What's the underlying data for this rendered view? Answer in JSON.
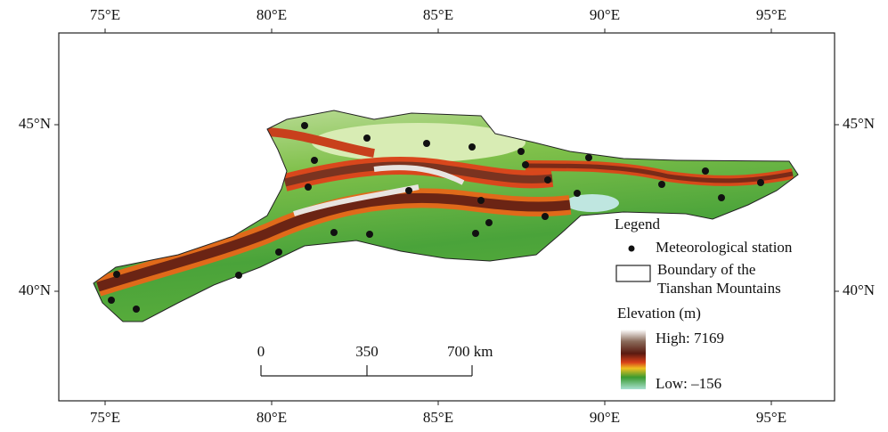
{
  "map": {
    "lon_ticks": [
      "75°E",
      "80°E",
      "85°E",
      "90°E",
      "95°E"
    ],
    "lat_ticks": [
      "45°N",
      "40°N"
    ],
    "scale_bar": [
      "0",
      "350",
      "700 km"
    ],
    "legend": {
      "title": "Legend",
      "station": "Meteorological station",
      "boundary": [
        "Boundary of the",
        "Tianshan Mountains"
      ],
      "elevation_title": "Elevation (m)",
      "high": "High: 7169",
      "low": "Low: –156"
    }
  }
}
